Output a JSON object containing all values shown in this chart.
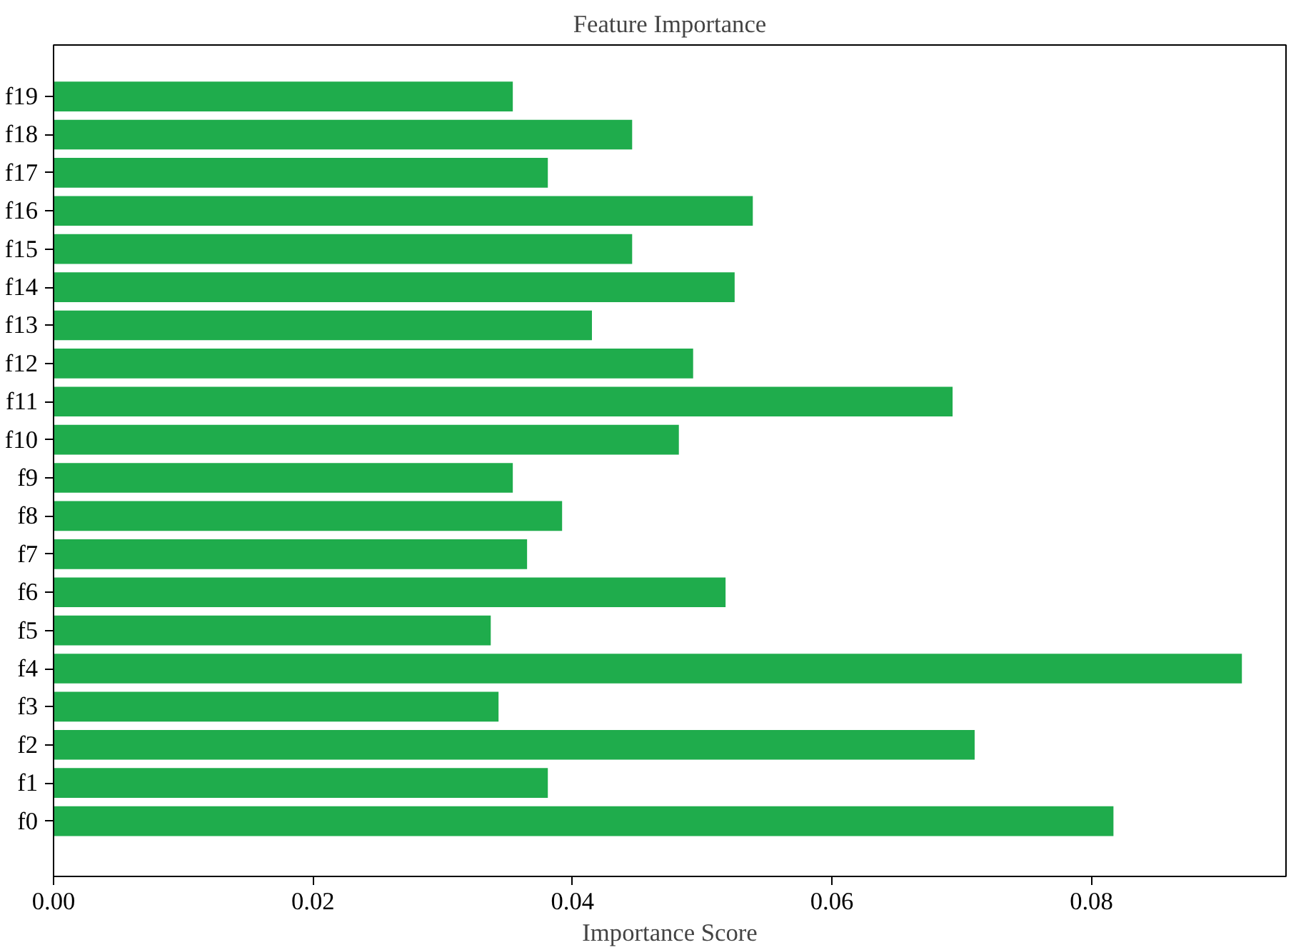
{
  "chart_data": {
    "type": "bar",
    "orientation": "horizontal",
    "title": "Feature Importance",
    "xlabel": "Importance Score",
    "categories": [
      "f19",
      "f18",
      "f17",
      "f16",
      "f15",
      "f14",
      "f13",
      "f12",
      "f11",
      "f10",
      "f9",
      "f8",
      "f7",
      "f6",
      "f5",
      "f4",
      "f3",
      "f2",
      "f1",
      "f0"
    ],
    "values": [
      0.0354,
      0.0446,
      0.0381,
      0.0539,
      0.0446,
      0.0525,
      0.0415,
      0.0493,
      0.0693,
      0.0482,
      0.0354,
      0.0392,
      0.0365,
      0.0518,
      0.0337,
      0.0916,
      0.0343,
      0.071,
      0.0381,
      0.0817
    ],
    "color": "#1fac4c",
    "xlim": [
      0,
      0.095
    ],
    "xticks": [
      {
        "value": 0,
        "label": "0.00"
      },
      {
        "value": 0.02,
        "label": "0.02"
      },
      {
        "value": 0.04,
        "label": "0.04"
      },
      {
        "value": 0.06,
        "label": "0.06"
      },
      {
        "value": 0.08,
        "label": "0.08"
      }
    ],
    "grid": false
  }
}
